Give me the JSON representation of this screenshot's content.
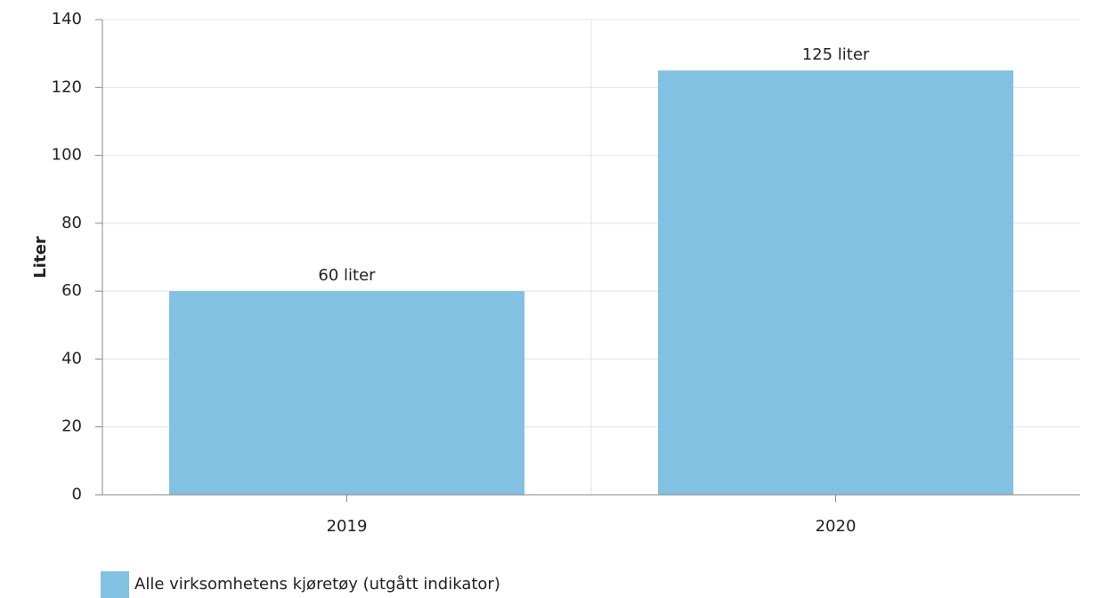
{
  "chart_data": {
    "type": "bar",
    "y_label": "Liter",
    "categories": [
      "2019",
      "2020"
    ],
    "series": [
      {
        "name": "Alle virksomhetens kjøretøy (utgått indikator)",
        "color": "#82c1e1",
        "values": [
          60,
          125
        ],
        "value_labels": [
          "60 liter",
          "125 liter"
        ]
      }
    ],
    "ylim": [
      0,
      140
    ],
    "yticks": [
      0,
      20,
      40,
      60,
      80,
      100,
      120,
      140
    ],
    "grid": true,
    "legend": "bottom-left"
  }
}
